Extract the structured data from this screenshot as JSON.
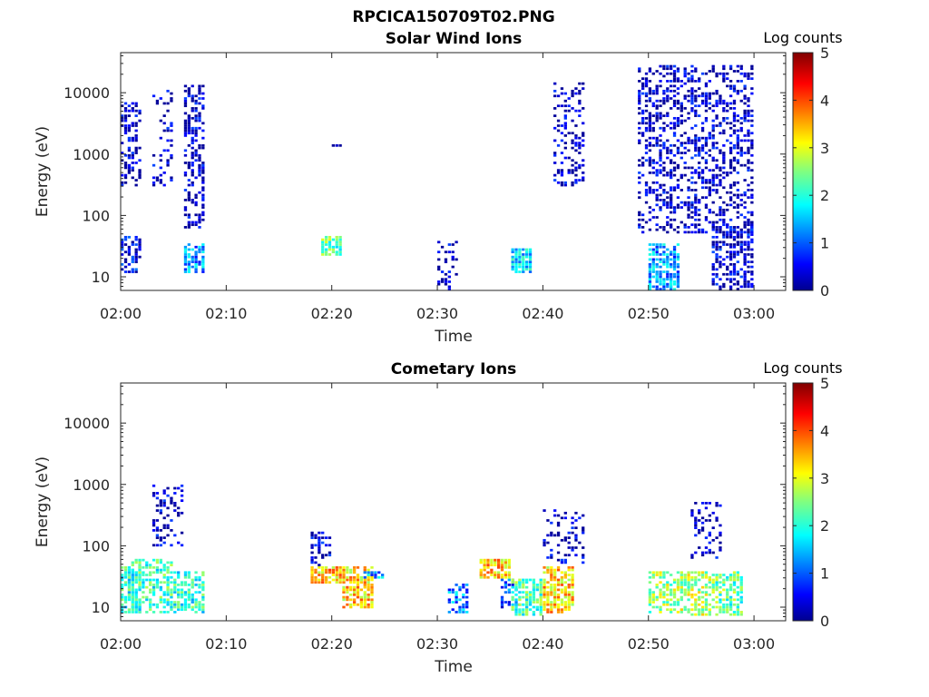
{
  "figure": {
    "title": "RPCICA150709T02.PNG"
  },
  "colorbar": {
    "label": "Log counts",
    "ticks": [
      "0",
      "1",
      "2",
      "3",
      "4",
      "5"
    ],
    "range": [
      0,
      5
    ],
    "colormap": "jet"
  },
  "chart_data": [
    {
      "type": "heatmap",
      "title": "Solar Wind Ions",
      "xlabel": "Time",
      "ylabel": "Energy (eV)",
      "x_scale": "time",
      "y_scale": "log",
      "xlim": [
        "02:00",
        "03:03"
      ],
      "ylim": [
        6,
        45000
      ],
      "x_ticks": [
        "02:00",
        "02:10",
        "02:20",
        "02:30",
        "02:40",
        "02:50",
        "03:00"
      ],
      "y_ticks": [
        "10",
        "100",
        "1000",
        "10000"
      ],
      "clusters": [
        {
          "t_start": "02:00",
          "t_end": "02:01",
          "e_min": 300,
          "e_max": 7000,
          "level": 0.2,
          "density": 0.45
        },
        {
          "t_start": "02:00",
          "t_end": "02:01",
          "e_min": 12,
          "e_max": 45,
          "level": 0.5,
          "density": 0.6
        },
        {
          "t_start": "02:03",
          "t_end": "02:04",
          "e_min": 300,
          "e_max": 12000,
          "level": 0.2,
          "density": 0.2
        },
        {
          "t_start": "02:06",
          "t_end": "02:07",
          "e_min": 60,
          "e_max": 14000,
          "level": 0.2,
          "density": 0.5
        },
        {
          "t_start": "02:06",
          "t_end": "02:07",
          "e_min": 12,
          "e_max": 35,
          "level": 1.3,
          "density": 0.7
        },
        {
          "t_start": "02:19",
          "t_end": "02:20",
          "e_min": 22,
          "e_max": 45,
          "level": 2.3,
          "density": 0.9
        },
        {
          "t_start": "02:20",
          "t_end": "02:20",
          "e_min": 1300,
          "e_max": 1400,
          "level": 0.2,
          "density": 1.0
        },
        {
          "t_start": "02:30",
          "t_end": "02:31",
          "e_min": 6,
          "e_max": 40,
          "level": 0.2,
          "density": 0.25
        },
        {
          "t_start": "02:37",
          "t_end": "02:38",
          "e_min": 12,
          "e_max": 28,
          "level": 1.6,
          "density": 0.9
        },
        {
          "t_start": "02:41",
          "t_end": "02:43",
          "e_min": 300,
          "e_max": 15000,
          "level": 0.2,
          "density": 0.3
        },
        {
          "t_start": "02:49",
          "t_end": "02:53",
          "e_min": 50,
          "e_max": 28000,
          "level": 0.2,
          "density": 0.4
        },
        {
          "t_start": "02:50",
          "t_end": "02:52",
          "e_min": 6,
          "e_max": 35,
          "level": 1.3,
          "density": 0.65
        },
        {
          "t_start": "02:54",
          "t_end": "02:59",
          "e_min": 50,
          "e_max": 28000,
          "level": 0.2,
          "density": 0.4
        },
        {
          "t_start": "02:56",
          "t_end": "02:59",
          "e_min": 6,
          "e_max": 80,
          "level": 0.3,
          "density": 0.55
        }
      ]
    },
    {
      "type": "heatmap",
      "title": "Cometary Ions",
      "xlabel": "Time",
      "ylabel": "Energy (eV)",
      "x_scale": "time",
      "y_scale": "log",
      "xlim": [
        "02:00",
        "03:03"
      ],
      "ylim": [
        6,
        45000
      ],
      "x_ticks": [
        "02:00",
        "02:10",
        "02:20",
        "02:30",
        "02:40",
        "02:50",
        "03:00"
      ],
      "y_ticks": [
        "10",
        "100",
        "1000",
        "10000"
      ],
      "clusters": [
        {
          "t_start": "02:00",
          "t_end": "02:01",
          "e_min": 8,
          "e_max": 45,
          "level": 2.0,
          "density": 0.7
        },
        {
          "t_start": "02:01",
          "t_end": "02:04",
          "e_min": 8,
          "e_max": 60,
          "level": 2.1,
          "density": 0.55
        },
        {
          "t_start": "02:03",
          "t_end": "02:05",
          "e_min": 100,
          "e_max": 1000,
          "level": 0.2,
          "density": 0.3
        },
        {
          "t_start": "02:05",
          "t_end": "02:07",
          "e_min": 8,
          "e_max": 40,
          "level": 2.0,
          "density": 0.6
        },
        {
          "t_start": "02:18",
          "t_end": "02:20",
          "e_min": 25,
          "e_max": 45,
          "level": 3.4,
          "density": 0.8
        },
        {
          "t_start": "02:18",
          "t_end": "02:19",
          "e_min": 45,
          "e_max": 170,
          "level": 0.3,
          "density": 0.5
        },
        {
          "t_start": "02:21",
          "t_end": "02:23",
          "e_min": 10,
          "e_max": 45,
          "level": 3.3,
          "density": 0.75
        },
        {
          "t_start": "02:23",
          "t_end": "02:24",
          "e_min": 30,
          "e_max": 40,
          "level": 1.3,
          "density": 0.6
        },
        {
          "t_start": "02:31",
          "t_end": "02:32",
          "e_min": 8,
          "e_max": 25,
          "level": 1.2,
          "density": 0.6
        },
        {
          "t_start": "02:34",
          "t_end": "02:36",
          "e_min": 28,
          "e_max": 60,
          "level": 3.4,
          "density": 0.8
        },
        {
          "t_start": "02:36",
          "t_end": "02:37",
          "e_min": 10,
          "e_max": 30,
          "level": 0.8,
          "density": 0.4
        },
        {
          "t_start": "02:37",
          "t_end": "02:39",
          "e_min": 7,
          "e_max": 30,
          "level": 2.2,
          "density": 0.7
        },
        {
          "t_start": "02:40",
          "t_end": "02:42",
          "e_min": 8,
          "e_max": 45,
          "level": 3.3,
          "density": 0.75
        },
        {
          "t_start": "02:40",
          "t_end": "02:43",
          "e_min": 50,
          "e_max": 400,
          "level": 0.2,
          "density": 0.25
        },
        {
          "t_start": "02:50",
          "t_end": "02:52",
          "e_min": 8,
          "e_max": 40,
          "level": 2.6,
          "density": 0.6
        },
        {
          "t_start": "02:53",
          "t_end": "02:55",
          "e_min": 7,
          "e_max": 40,
          "level": 2.7,
          "density": 0.65
        },
        {
          "t_start": "02:54",
          "t_end": "02:56",
          "e_min": 60,
          "e_max": 500,
          "level": 0.2,
          "density": 0.3
        },
        {
          "t_start": "02:56",
          "t_end": "02:58",
          "e_min": 7,
          "e_max": 40,
          "level": 2.3,
          "density": 0.6
        }
      ]
    }
  ]
}
